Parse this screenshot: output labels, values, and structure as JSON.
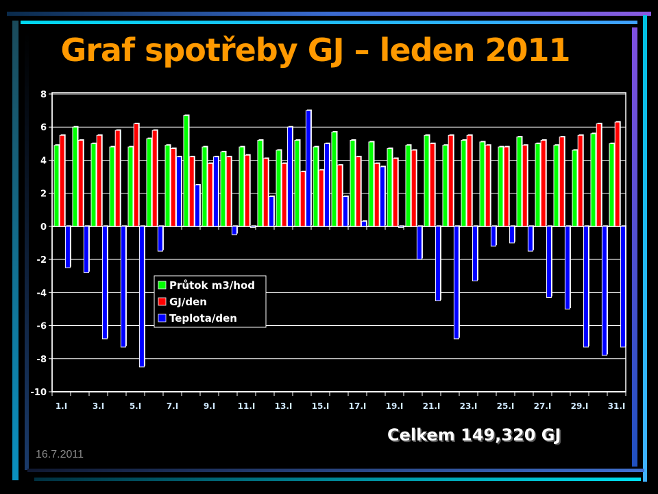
{
  "slide": {
    "title": "Graf spotřeby GJ – leden 2011",
    "total": "Celkem 149,320 GJ",
    "date": "16.7.2011"
  },
  "chart_data": {
    "type": "bar",
    "title": "",
    "xlabel": "",
    "ylabel": "",
    "ylim": [
      -10,
      8
    ],
    "yticks": [
      8,
      6,
      4,
      2,
      0,
      -2,
      -4,
      -6,
      -8,
      -10
    ],
    "grid": true,
    "legend_position": "center-left",
    "categories": [
      "1.I",
      "2.I",
      "3.I",
      "4.I",
      "5.I",
      "6.I",
      "7.I",
      "8.I",
      "9.I",
      "10.I",
      "11.I",
      "12.I",
      "13.I",
      "14.I",
      "15.I",
      "16.I",
      "17.I",
      "18.I",
      "19.I",
      "20.I",
      "21.I",
      "22.I",
      "23.I",
      "24.I",
      "25.I",
      "26.I",
      "27.I",
      "28.I",
      "29.I",
      "30.I",
      "31.I"
    ],
    "xtick_labels": [
      "1.I",
      "3.I",
      "5.I",
      "7.I",
      "9.I",
      "11.I",
      "13.I",
      "15.I",
      "17.I",
      "19.I",
      "21.I",
      "23.I",
      "25.I",
      "27.I",
      "29.I",
      "31.I"
    ],
    "series": [
      {
        "name": "Průtok m3/hod",
        "color": "#00ff00",
        "values": [
          4.9,
          6.0,
          5.0,
          4.8,
          4.8,
          5.3,
          4.9,
          6.7,
          4.8,
          4.5,
          4.8,
          5.2,
          4.6,
          5.2,
          4.8,
          5.7,
          5.2,
          5.1,
          4.7,
          4.9,
          5.5,
          4.9,
          5.2,
          5.1,
          4.8,
          5.4,
          5.0,
          4.9,
          4.6,
          5.6,
          5.0
        ]
      },
      {
        "name": "GJ/den",
        "color": "#ff0000",
        "values": [
          5.5,
          5.2,
          5.5,
          5.8,
          6.2,
          5.8,
          4.7,
          4.2,
          3.8,
          4.2,
          4.3,
          4.1,
          3.8,
          3.3,
          3.4,
          3.7,
          4.2,
          3.8,
          4.1,
          4.6,
          5.0,
          5.5,
          5.5,
          4.9,
          4.8,
          4.9,
          5.2,
          5.4,
          5.5,
          6.2,
          6.3
        ]
      },
      {
        "name": "Teplota/den",
        "color": "#0000ff",
        "values": [
          -2.5,
          -2.8,
          -6.8,
          -7.3,
          -8.5,
          -1.5,
          4.2,
          2.5,
          4.2,
          -0.5,
          0,
          1.8,
          6.0,
          7.0,
          5.0,
          1.8,
          0.3,
          3.6,
          0,
          -2.0,
          -4.5,
          -6.8,
          -3.3,
          -1.2,
          -1.0,
          -1.5,
          -4.3,
          -5.0,
          -7.3,
          -7.8,
          -7.3
        ]
      }
    ]
  }
}
